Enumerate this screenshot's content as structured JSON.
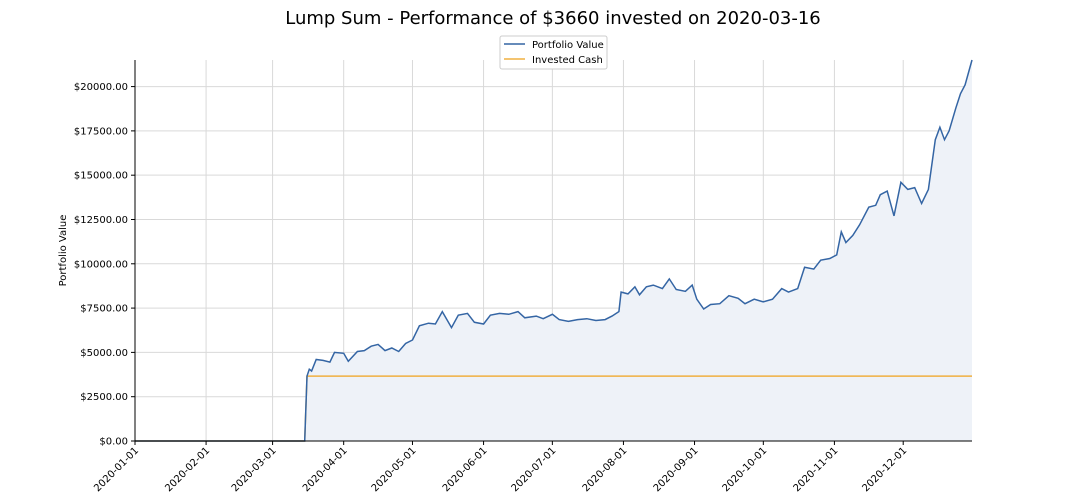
{
  "chart_data": {
    "type": "line",
    "title": "Lump Sum - Performance of $3660 invested on 2020-03-16",
    "xlabel": "",
    "ylabel": "Portfolio Value",
    "x_range": [
      "2020-01-01",
      "2020-12-31"
    ],
    "ylim": [
      0,
      21500
    ],
    "x_ticks": [
      "2020-01-01",
      "2020-02-01",
      "2020-03-01",
      "2020-04-01",
      "2020-05-01",
      "2020-06-01",
      "2020-07-01",
      "2020-08-01",
      "2020-09-01",
      "2020-10-01",
      "2020-11-01",
      "2020-12-01"
    ],
    "y_ticks": [
      0,
      2500,
      5000,
      7500,
      10000,
      12500,
      15000,
      17500,
      20000
    ],
    "y_tick_labels": [
      "$0.00",
      "$2500.00",
      "$5000.00",
      "$7500.00",
      "$10000.00",
      "$12500.00",
      "$15000.00",
      "$17500.00",
      "$20000.00"
    ],
    "grid": true,
    "legend_position": "top-center",
    "series": [
      {
        "name": "Portfolio Value",
        "color": "#3465a4",
        "fill": "#eef2f8",
        "points": [
          [
            "2020-01-01",
            0
          ],
          [
            "2020-03-15",
            0
          ],
          [
            "2020-03-16",
            3660
          ],
          [
            "2020-03-17",
            4050
          ],
          [
            "2020-03-18",
            3950
          ],
          [
            "2020-03-20",
            4600
          ],
          [
            "2020-03-23",
            4550
          ],
          [
            "2020-03-26",
            4450
          ],
          [
            "2020-03-28",
            5000
          ],
          [
            "2020-04-01",
            4950
          ],
          [
            "2020-04-03",
            4500
          ],
          [
            "2020-04-07",
            5050
          ],
          [
            "2020-04-10",
            5100
          ],
          [
            "2020-04-13",
            5350
          ],
          [
            "2020-04-16",
            5450
          ],
          [
            "2020-04-19",
            5100
          ],
          [
            "2020-04-22",
            5250
          ],
          [
            "2020-04-25",
            5050
          ],
          [
            "2020-04-28",
            5500
          ],
          [
            "2020-05-01",
            5700
          ],
          [
            "2020-05-04",
            6500
          ],
          [
            "2020-05-08",
            6650
          ],
          [
            "2020-05-11",
            6600
          ],
          [
            "2020-05-14",
            7300
          ],
          [
            "2020-05-18",
            6400
          ],
          [
            "2020-05-21",
            7100
          ],
          [
            "2020-05-25",
            7200
          ],
          [
            "2020-05-28",
            6700
          ],
          [
            "2020-06-01",
            6600
          ],
          [
            "2020-06-04",
            7100
          ],
          [
            "2020-06-08",
            7200
          ],
          [
            "2020-06-12",
            7150
          ],
          [
            "2020-06-16",
            7300
          ],
          [
            "2020-06-19",
            6950
          ],
          [
            "2020-06-24",
            7050
          ],
          [
            "2020-06-27",
            6900
          ],
          [
            "2020-07-01",
            7150
          ],
          [
            "2020-07-04",
            6850
          ],
          [
            "2020-07-08",
            6750
          ],
          [
            "2020-07-12",
            6850
          ],
          [
            "2020-07-16",
            6900
          ],
          [
            "2020-07-20",
            6800
          ],
          [
            "2020-07-24",
            6850
          ],
          [
            "2020-07-27",
            7050
          ],
          [
            "2020-07-30",
            7300
          ],
          [
            "2020-07-31",
            8400
          ],
          [
            "2020-08-03",
            8300
          ],
          [
            "2020-08-06",
            8700
          ],
          [
            "2020-08-08",
            8250
          ],
          [
            "2020-08-11",
            8700
          ],
          [
            "2020-08-14",
            8800
          ],
          [
            "2020-08-18",
            8600
          ],
          [
            "2020-08-21",
            9150
          ],
          [
            "2020-08-24",
            8550
          ],
          [
            "2020-08-28",
            8450
          ],
          [
            "2020-08-31",
            8800
          ],
          [
            "2020-09-02",
            8000
          ],
          [
            "2020-09-05",
            7450
          ],
          [
            "2020-09-08",
            7700
          ],
          [
            "2020-09-12",
            7750
          ],
          [
            "2020-09-16",
            8200
          ],
          [
            "2020-09-20",
            8050
          ],
          [
            "2020-09-23",
            7750
          ],
          [
            "2020-09-27",
            8000
          ],
          [
            "2020-10-01",
            7850
          ],
          [
            "2020-10-05",
            8000
          ],
          [
            "2020-10-09",
            8600
          ],
          [
            "2020-10-12",
            8400
          ],
          [
            "2020-10-16",
            8600
          ],
          [
            "2020-10-19",
            9800
          ],
          [
            "2020-10-23",
            9700
          ],
          [
            "2020-10-26",
            10200
          ],
          [
            "2020-10-30",
            10300
          ],
          [
            "2020-11-02",
            10500
          ],
          [
            "2020-11-04",
            11800
          ],
          [
            "2020-11-06",
            11200
          ],
          [
            "2020-11-09",
            11600
          ],
          [
            "2020-11-12",
            12200
          ],
          [
            "2020-11-16",
            13200
          ],
          [
            "2020-11-19",
            13300
          ],
          [
            "2020-11-21",
            13900
          ],
          [
            "2020-11-24",
            14100
          ],
          [
            "2020-11-27",
            12700
          ],
          [
            "2020-11-30",
            14600
          ],
          [
            "2020-12-03",
            14200
          ],
          [
            "2020-12-06",
            14300
          ],
          [
            "2020-12-09",
            13400
          ],
          [
            "2020-12-12",
            14200
          ],
          [
            "2020-12-15",
            17000
          ],
          [
            "2020-12-17",
            17700
          ],
          [
            "2020-12-19",
            17000
          ],
          [
            "2020-12-21",
            17500
          ],
          [
            "2020-12-24",
            18800
          ],
          [
            "2020-12-26",
            19600
          ],
          [
            "2020-12-28",
            20100
          ],
          [
            "2020-12-31",
            21500
          ]
        ]
      },
      {
        "name": "Invested Cash",
        "color": "#f0b040",
        "points": [
          [
            "2020-01-01",
            0
          ],
          [
            "2020-03-15",
            0
          ],
          [
            "2020-03-16",
            3660
          ],
          [
            "2020-12-31",
            3660
          ]
        ]
      }
    ]
  }
}
